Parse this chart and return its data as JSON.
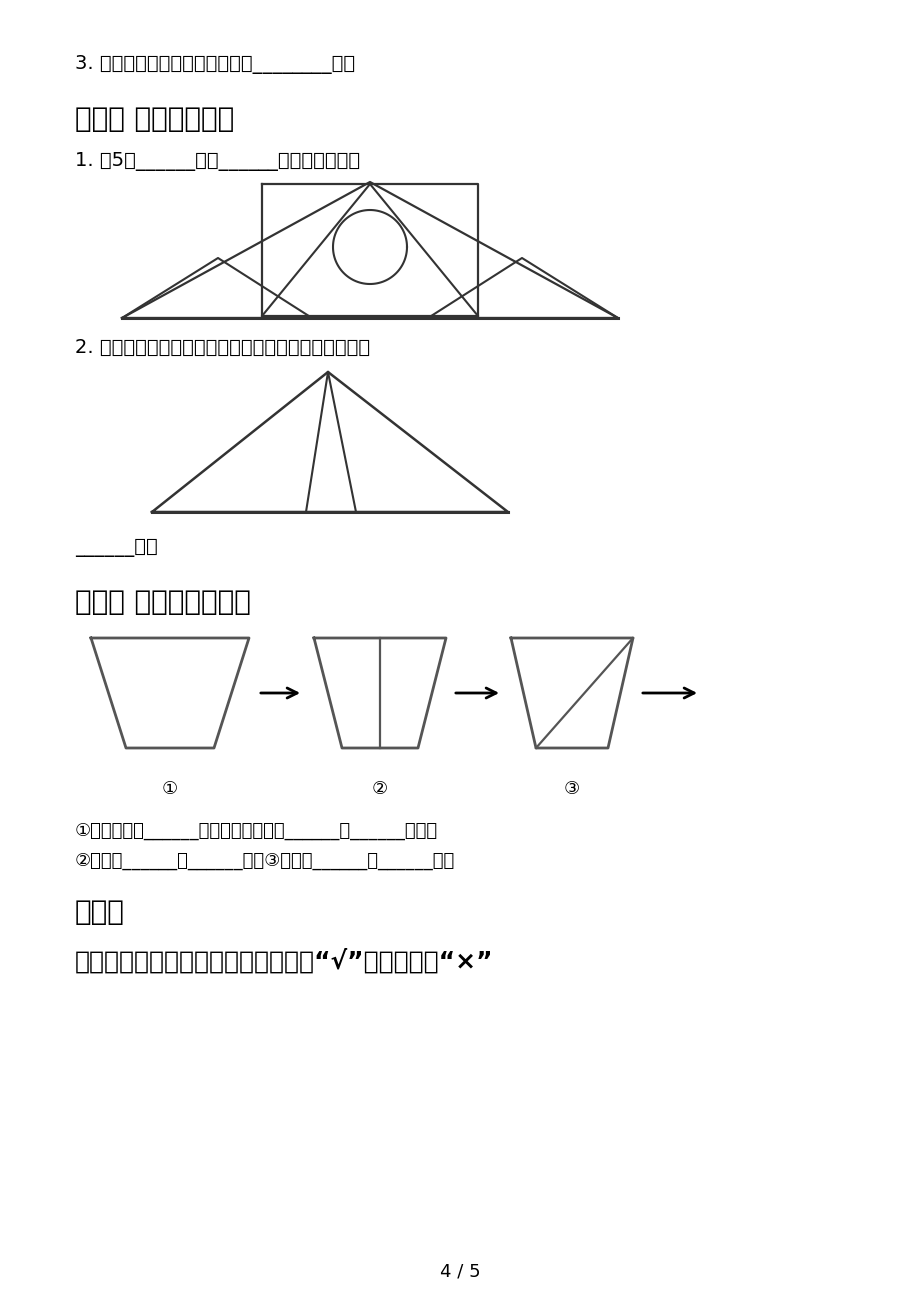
{
  "bg_color": "#ffffff",
  "line_color": "#333333",
  "text_color": "#000000",
  "section3_text": "3. 角的边越长，这个角就越大（________）。",
  "section12_title": "十二、 看图填一填。",
  "section12_q1": "1. 有5个______形和______个圆形拼成的。",
  "section12_q2": "2. 看图，看看有多少个三角形。（复合出的图形也算）",
  "blank_line": "______个。",
  "section13_title": "十三、 观察下图填空。",
  "section13_labels": [
    "①",
    "②",
    "③"
  ],
  "section13_q1": "①整个图形是______图形，里面分别是______和______图形；",
  "section13_q2": "②一共有______个______形；③里面有______个______形。",
  "section14_title": "十四、",
  "section14_q": "下面的图形中，是直角的在（）里打“√”，不是的打“×”",
  "page_num": "4 / 5"
}
